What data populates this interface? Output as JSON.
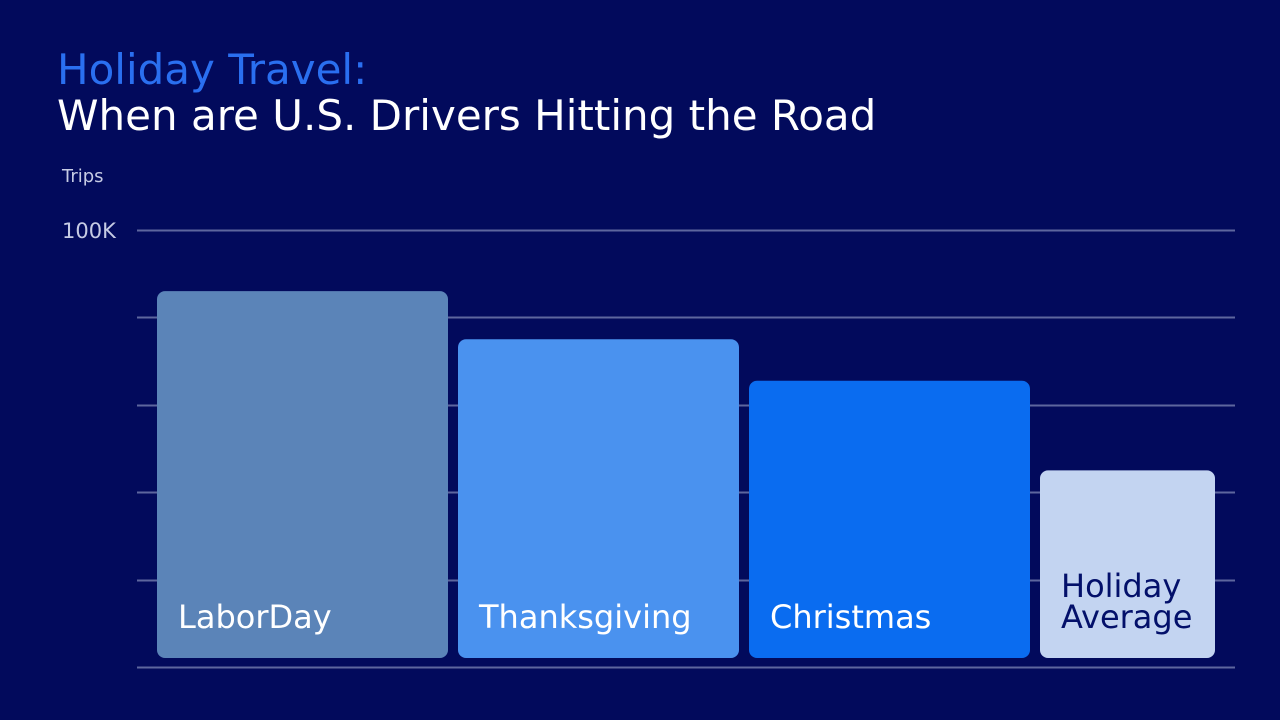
{
  "title": {
    "line1": "Holiday Travel:",
    "line2": "When are U.S. Drivers Hitting the Road"
  },
  "colors": {
    "background": "#020a5c",
    "title_accent": "#2a6ff0",
    "gridline": "#5d669e",
    "axis_text": "#c6cbe4"
  },
  "chart_data": {
    "type": "bar",
    "ylabel": "Trips",
    "ylim": [
      0,
      100000
    ],
    "yticks": [
      {
        "value": 100000,
        "label": "100K"
      }
    ],
    "grid_values": [
      0,
      20000,
      40000,
      60000,
      80000,
      100000
    ],
    "grid": true,
    "categories": [
      "LaborDay",
      "Thanksgiving",
      "Christmas",
      "Holiday Average"
    ],
    "category_label_lines": [
      [
        "LaborDay"
      ],
      [
        "Thanksgiving"
      ],
      [
        "Christmas"
      ],
      [
        "Holiday",
        "Average"
      ]
    ],
    "values": [
      86000,
      75000,
      65500,
      45000
    ],
    "bar_colors": [
      "#5b84b8",
      "#4a92ef",
      "#0a6cf0",
      "#c3d4f1"
    ],
    "label_colors": [
      "#ffffff",
      "#ffffff",
      "#ffffff",
      "#03106a"
    ]
  }
}
